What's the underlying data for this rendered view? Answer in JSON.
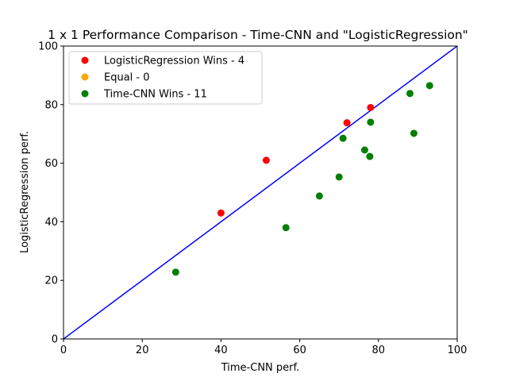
{
  "chart_data": {
    "type": "scatter",
    "title": "1 x 1 Performance Comparison - Time-CNN and \"LogisticRegression\"",
    "xlabel": "Time-CNN perf.",
    "ylabel": "LogisticRegression perf.",
    "xlim": [
      0,
      100
    ],
    "ylim": [
      0,
      100
    ],
    "xticks": [
      "0",
      "20",
      "40",
      "60",
      "80",
      "100"
    ],
    "yticks": [
      "0",
      "20",
      "40",
      "60",
      "80",
      "100"
    ],
    "grid": false,
    "legend_position": "top-left",
    "diagonal": {
      "from": [
        0,
        0
      ],
      "to": [
        100,
        100
      ],
      "color": "#0000ff"
    },
    "series": [
      {
        "name": "LogisticRegression Wins - 4",
        "color": "#ff0000",
        "points": [
          [
            40.0,
            43.0
          ],
          [
            51.5,
            61.0
          ],
          [
            72.0,
            73.8
          ],
          [
            78.0,
            79.0
          ]
        ]
      },
      {
        "name": "Equal - 0",
        "color": "#ffa500",
        "points": []
      },
      {
        "name": "Time-CNN Wins - 11",
        "color": "#008000",
        "points": [
          [
            28.5,
            22.8
          ],
          [
            56.5,
            38.0
          ],
          [
            65.0,
            48.8
          ],
          [
            70.0,
            55.3
          ],
          [
            71.0,
            68.5
          ],
          [
            76.5,
            64.5
          ],
          [
            77.8,
            62.3
          ],
          [
            78.0,
            74.0
          ],
          [
            88.0,
            83.8
          ],
          [
            89.0,
            70.2
          ],
          [
            93.0,
            86.5
          ]
        ]
      }
    ]
  }
}
